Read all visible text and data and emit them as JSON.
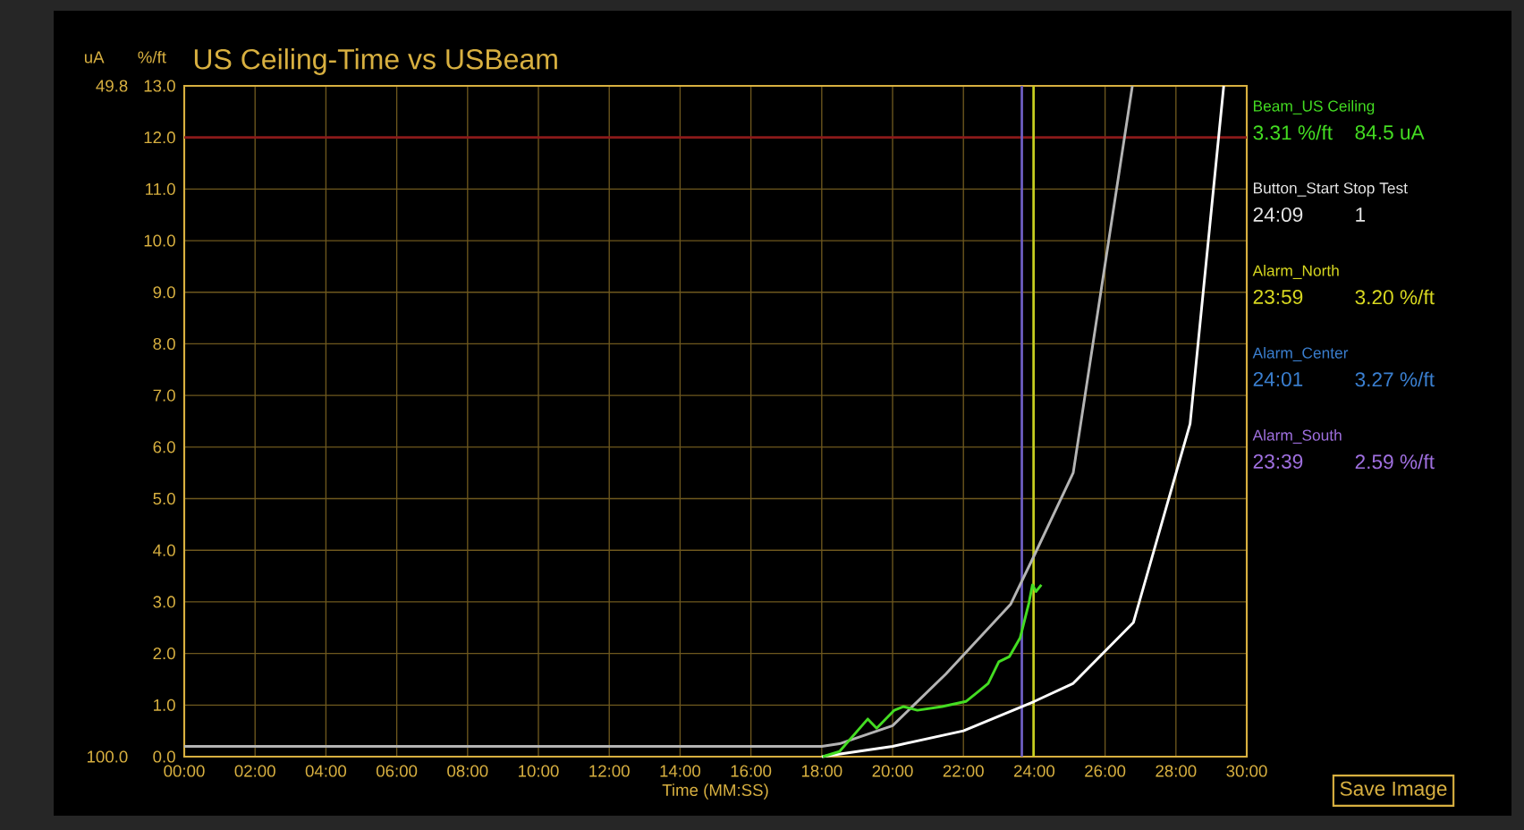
{
  "chart_data": {
    "type": "line",
    "title": "US Ceiling-Time vs USBeam",
    "xlabel": "Time (MM:SS)",
    "ylabel": "%/ft",
    "y2label": "uA",
    "xlim": [
      0,
      30
    ],
    "xticks": [
      {
        "value": 0,
        "label": "00:00"
      },
      {
        "value": 2,
        "label": "02:00"
      },
      {
        "value": 4,
        "label": "04:00"
      },
      {
        "value": 6,
        "label": "06:00"
      },
      {
        "value": 8,
        "label": "08:00"
      },
      {
        "value": 10,
        "label": "10:00"
      },
      {
        "value": 12,
        "label": "12:00"
      },
      {
        "value": 14,
        "label": "14:00"
      },
      {
        "value": 16,
        "label": "16:00"
      },
      {
        "value": 18,
        "label": "18:00"
      },
      {
        "value": 20,
        "label": "20:00"
      },
      {
        "value": 22,
        "label": "22:00"
      },
      {
        "value": 24,
        "label": "24:00"
      },
      {
        "value": 26,
        "label": "26:00"
      },
      {
        "value": 28,
        "label": "28:00"
      },
      {
        "value": 30,
        "label": "30:00"
      }
    ],
    "ylim": [
      0,
      13
    ],
    "yticks": [
      {
        "value": 0,
        "label": "0.0"
      },
      {
        "value": 1,
        "label": "1.0"
      },
      {
        "value": 2,
        "label": "2.0"
      },
      {
        "value": 3,
        "label": "3.0"
      },
      {
        "value": 4,
        "label": "4.0"
      },
      {
        "value": 5,
        "label": "5.0"
      },
      {
        "value": 6,
        "label": "6.0"
      },
      {
        "value": 7,
        "label": "7.0"
      },
      {
        "value": 8,
        "label": "8.0"
      },
      {
        "value": 9,
        "label": "9.0"
      },
      {
        "value": 10,
        "label": "10.0"
      },
      {
        "value": 11,
        "label": "11.0"
      },
      {
        "value": 12,
        "label": "12.0"
      },
      {
        "value": 13,
        "label": "13.0"
      }
    ],
    "y2lim": [
      100,
      49.8
    ],
    "y2ticks": [
      {
        "value": 100,
        "label": "100.0"
      },
      49.8
    ],
    "grid": true,
    "marker": "none",
    "line_style": "solid",
    "series": [
      {
        "color": "#b4b4b4",
        "x": [
          0,
          18,
          18.5,
          20,
          21.5,
          23.33,
          24,
          25.1,
          26.77
        ],
        "values": [
          0.2,
          0.2,
          0.25,
          0.6,
          1.6,
          2.95,
          3.9,
          5.5,
          13
        ]
      },
      {
        "color": "#ffffff",
        "x": [
          18,
          20,
          22,
          24,
          25.1,
          26.8,
          28.4,
          29.35
        ],
        "values": [
          0,
          0.2,
          0.5,
          1.07,
          1.42,
          2.6,
          6.45,
          13
        ]
      },
      {
        "color": "#44dd22",
        "x": [
          18.03,
          18.5,
          19.3,
          19.55,
          20.05,
          20.3,
          20.7,
          21.4,
          22.07,
          22.4,
          22.7,
          23,
          23.3,
          23.6,
          23.85,
          23.95,
          24.05,
          24.2
        ],
        "values": [
          0,
          0.1,
          0.73,
          0.55,
          0.9,
          0.97,
          0.9,
          0.97,
          1.07,
          1.25,
          1.42,
          1.84,
          1.94,
          2.3,
          2.98,
          3.33,
          3.2,
          3.33
        ]
      }
    ],
    "ref_lines": [
      {
        "axis": "y",
        "value": 12,
        "color": "#8b1a1a"
      },
      {
        "axis": "x",
        "value": 23.65,
        "color": "#7060c8"
      },
      {
        "axis": "x",
        "value": 23.98,
        "color": "#c8d020"
      }
    ],
    "annotations": [
      "Beam_US Ceiling",
      "3.31 %/ft",
      "84.5 uA",
      "Button_Start Stop Test",
      "24:09",
      "1",
      "Alarm_North",
      "23:59",
      "3.20 %/ft",
      "Alarm_Center",
      "24:01",
      "3.27 %/ft",
      "Alarm_South",
      "23:39",
      "2.59 %/ft",
      "Save Image"
    ]
  }
}
